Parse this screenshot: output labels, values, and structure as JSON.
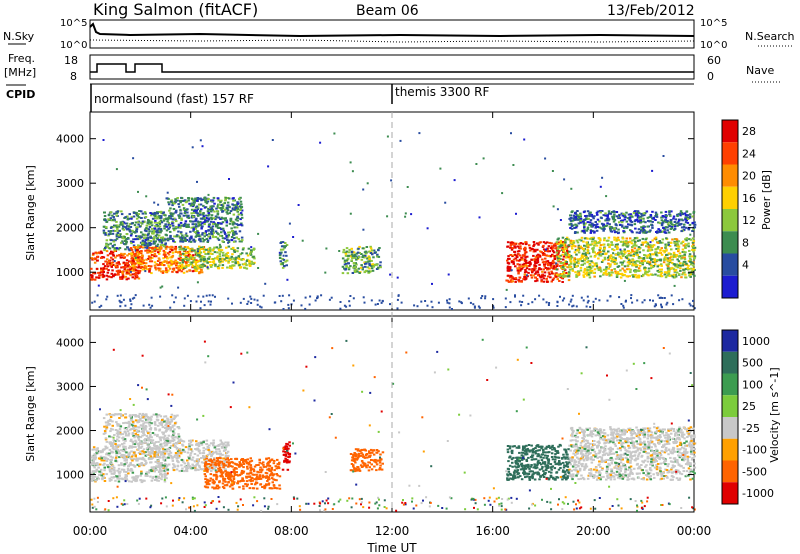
{
  "header": {
    "station": "King Salmon (fitACF)",
    "beam": "Beam 06",
    "date": "13/Feb/2012"
  },
  "summary": {
    "nsky_label": "N.Sky",
    "nsky_ticks": [
      "10^5",
      "10^0"
    ],
    "nsearch_label": "N.Search",
    "nsearch_ticks": [
      "10^5",
      "10^0"
    ],
    "freq_label_1": "Freq.",
    "freq_label_2": "[MHz]",
    "freq_ticks": [
      "18",
      "8"
    ],
    "nave_label": "Nave",
    "nave_ticks": [
      "60",
      "0"
    ],
    "cpid_label": "CPID",
    "cpid_segments": [
      {
        "name": "normalsound (fast) 157 RF",
        "start_ut": 0
      },
      {
        "name": "themis 3300 RF",
        "start_ut": 12
      }
    ]
  },
  "chart_data": [
    {
      "type": "heatmap",
      "panel": "power",
      "ylabel": "Slant Range [km]",
      "y_ticks": [
        1000,
        2000,
        3000,
        4000
      ],
      "x_ticks": [
        0,
        4,
        8,
        12,
        16,
        20,
        24
      ],
      "colorbar_label": "Power [dB]",
      "colorbar_ticks": [
        "28",
        "24",
        "20",
        "16",
        "12",
        "8",
        "4"
      ],
      "colorbar_colors": [
        "#e00000",
        "#ff4000",
        "#ff8c00",
        "#ffd000",
        "#8cc83c",
        "#3c8c50",
        "#284ca0",
        "#1c1cd0"
      ],
      "regions": [
        {
          "t": [
            0.0,
            2.0
          ],
          "r": [
            850,
            1500
          ],
          "dB": 26
        },
        {
          "t": [
            0.5,
            3.0
          ],
          "r": [
            1500,
            2400
          ],
          "dB": 10
        },
        {
          "t": [
            1.5,
            4.5
          ],
          "r": [
            1000,
            1600
          ],
          "dB": 22
        },
        {
          "t": [
            3.0,
            6.0
          ],
          "r": [
            1700,
            2700
          ],
          "dB": 9
        },
        {
          "t": [
            3.5,
            6.5
          ],
          "r": [
            1100,
            1600
          ],
          "dB": 14
        },
        {
          "t": [
            7.5,
            7.8
          ],
          "r": [
            1100,
            1700
          ],
          "dB": 10
        },
        {
          "t": [
            10.0,
            11.5
          ],
          "r": [
            1000,
            1600
          ],
          "dB": 12
        },
        {
          "t": [
            16.5,
            19.0
          ],
          "r": [
            800,
            1700
          ],
          "dB": 27
        },
        {
          "t": [
            18.5,
            24.0
          ],
          "r": [
            900,
            1800
          ],
          "dB": 15
        },
        {
          "t": [
            19.0,
            24.0
          ],
          "r": [
            1900,
            2400
          ],
          "dB": 8
        }
      ]
    },
    {
      "type": "heatmap",
      "panel": "velocity",
      "ylabel": "Slant Range [km]",
      "xlabel": "Time UT",
      "x_ticks_labels": [
        "00:00",
        "04:00",
        "08:00",
        "12:00",
        "16:00",
        "20:00",
        "00:00"
      ],
      "y_ticks": [
        1000,
        2000,
        3000,
        4000
      ],
      "colorbar_label": "Velocity [m s^-1]",
      "colorbar_ticks": [
        "1000",
        "500",
        "100",
        "25",
        "-25",
        "-100",
        "-500",
        "-1000"
      ],
      "colorbar_colors": [
        "#1c28a0",
        "#2e6e5a",
        "#3c9c50",
        "#7ccc3c",
        "#c8c8c8",
        "#ffa000",
        "#ff6400",
        "#e00000"
      ],
      "regions": [
        {
          "t": [
            0.0,
            3.0
          ],
          "r": [
            850,
            1700
          ],
          "v": 0
        },
        {
          "t": [
            0.5,
            3.5
          ],
          "r": [
            1700,
            2400
          ],
          "v": 0
        },
        {
          "t": [
            2.5,
            5.5
          ],
          "r": [
            1100,
            1800
          ],
          "v": 0
        },
        {
          "t": [
            4.5,
            7.5
          ],
          "r": [
            700,
            1400
          ],
          "v": -150
        },
        {
          "t": [
            7.6,
            7.9
          ],
          "r": [
            1100,
            1800
          ],
          "v": -800
        },
        {
          "t": [
            10.3,
            11.6
          ],
          "r": [
            1100,
            1600
          ],
          "v": -150
        },
        {
          "t": [
            16.5,
            19.0
          ],
          "r": [
            900,
            1700
          ],
          "v": 150
        },
        {
          "t": [
            19.0,
            24.0
          ],
          "r": [
            900,
            2100
          ],
          "v": 0
        }
      ]
    }
  ]
}
